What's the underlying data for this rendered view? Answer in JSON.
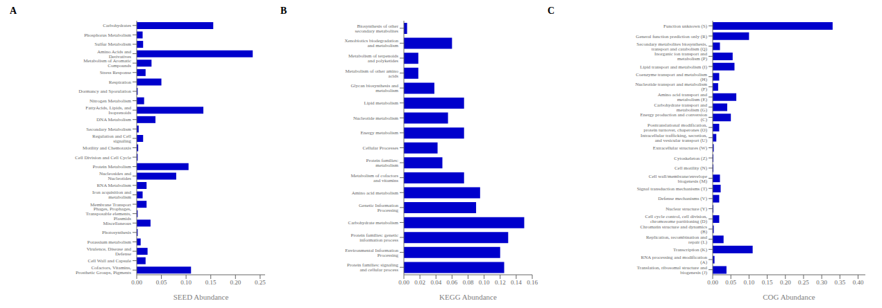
{
  "chart_data": [
    {
      "type": "bar",
      "orientation": "horizontal",
      "title": "A",
      "xlabel": "SEED Abundance",
      "color": "#0000CC",
      "categories": [
        "Carbohydrates",
        "Phosphorus Metabolism",
        "Sulfur Metabolism",
        "Amino Acids and Derivatives",
        "Metabolism of Aromatic Compounds",
        "Stress Response",
        "Respiration",
        "Dormancy and Sporulation",
        "Nitrogen Metabolism",
        "FattyAcids, Lipids, and Isoprenoids",
        "DNA Metabolism",
        "Secondary Metabolism",
        "Regulation and Cell signaling",
        "Motility and Chemotaxis",
        "Cell Division and Cell Cycle",
        "Protein Metabolism",
        "Nucleosides and Nucleotides",
        "RNA Metabolism",
        "Iron acquisition and metabolism",
        "Membrane Transport",
        "Phages, Prophages, Transposable elements, Plasmids",
        "Miscellaneous",
        "Photosynthesis",
        "Potassium metabolism",
        "Virulence, Disease and Defense",
        "Cell Wall and Capsule",
        "Cofactors, Vitamins, Prosthetic Groups, Pigments"
      ],
      "values": [
        0.155,
        0.012,
        0.013,
        0.235,
        0.03,
        0.018,
        0.05,
        0.002,
        0.015,
        0.135,
        0.038,
        0.004,
        0.013,
        0.003,
        0.002,
        0.105,
        0.08,
        0.02,
        0.012,
        0.02,
        0.002,
        0.028,
        0.002,
        0.008,
        0.022,
        0.018,
        0.11
      ],
      "xlim": [
        0,
        0.26
      ],
      "xticks": [
        {
          "value": 0,
          "label": "0.00"
        },
        0.05,
        {
          "value": 0.1,
          "label": "0.10"
        },
        0.15,
        {
          "value": 0.2,
          "label": "0.20"
        },
        0.25
      ]
    },
    {
      "type": "bar",
      "orientation": "horizontal",
      "title": "B",
      "xlabel": "KEGG Abundance",
      "color": "#0000CC",
      "categories": [
        "Biosynthesis of other secondary metabolites",
        "Xenobiotics biodegradation and metabolism",
        "Metabolism of terpenoids and polyketides",
        "Metabolism of other amino acids",
        "Glycan biosynthesis and metabolism",
        "Lipid metabolism",
        "Nucleotide metabolism",
        "Energy metabolism",
        "Cellular Processes",
        "Protein families: metabolism",
        "Metabolism of cofactors and vitamins",
        "Amino acid metabolism",
        "Genetic Information Processing",
        "Carbohydrate metabolism",
        "Protein families: genetic information process",
        "Environmental Information Processing",
        "Protein families: signaling and cellular process"
      ],
      "values": [
        0.004,
        0.06,
        0.018,
        0.018,
        0.038,
        0.075,
        0.055,
        0.075,
        0.042,
        0.048,
        0.075,
        0.095,
        0.09,
        0.15,
        0.13,
        0.12,
        0.125
      ],
      "xlim": [
        0,
        0.16
      ],
      "xticks": [
        {
          "value": 0,
          "label": "0.00"
        },
        0.02,
        0.04,
        0.06,
        0.08,
        {
          "value": 0.1,
          "label": "0.10"
        },
        0.12,
        0.14,
        0.16
      ]
    },
    {
      "type": "bar",
      "orientation": "horizontal",
      "title": "C",
      "xlabel": "COG Abundance",
      "color": "#0000CC",
      "categories": [
        "Function unknown (S)",
        "General function prediction only (R)",
        "Secondary metabolites biosynthesis, transport and catabolism (Q)",
        "Inorganic ion transport and metabolism (P)",
        "Lipid transport and metabolism (I)",
        "Coenzyme transport and metabolism (H)",
        "Nucleotide transport and metabolism (F)",
        "Amino acid transport and metabolism (E)",
        "Carbohydrate transport and metabolism (G)",
        "Energy production and conversion (C)",
        "Posttranslational modification, protein turnover, chaperones (O)",
        "Intracellular trafficking, secretion, and vesicular transport (U)",
        "Extracellular structures (W)",
        "Cytoskeleton (Z)",
        "Cell motility (N)",
        "Cell wall/membrane/envelope biogenesis (M)",
        "Signal transduction mechanisms (T)",
        "Defense mechanisms (V)",
        "Nuclear structure (Y)",
        "Cell cycle control, cell division, chromosome partitioning (D)",
        "Chromatin structure and dynamics (B)",
        "Replication, recombination and repair (L)",
        "Transcription (K)",
        "RNA processing and modification (A)",
        "Translation, ribosomal structure and biogenesis (J)"
      ],
      "values": [
        0.33,
        0.1,
        0.02,
        0.055,
        0.06,
        0.018,
        0.015,
        0.065,
        0.04,
        0.05,
        0.018,
        0.01,
        0.003,
        0.002,
        0.002,
        0.02,
        0.022,
        0.018,
        0.002,
        0.018,
        0.003,
        0.03,
        0.11,
        0.005,
        0.038
      ],
      "xlim": [
        0,
        0.42
      ],
      "xticks": [
        {
          "value": 0,
          "label": "0.00"
        },
        0.05,
        {
          "value": 0.1,
          "label": "0.10"
        },
        0.15,
        {
          "value": 0.2,
          "label": "0.20"
        },
        0.25,
        {
          "value": 0.3,
          "label": "0.30"
        },
        0.35,
        {
          "value": 0.4,
          "label": "0.40"
        }
      ]
    }
  ]
}
